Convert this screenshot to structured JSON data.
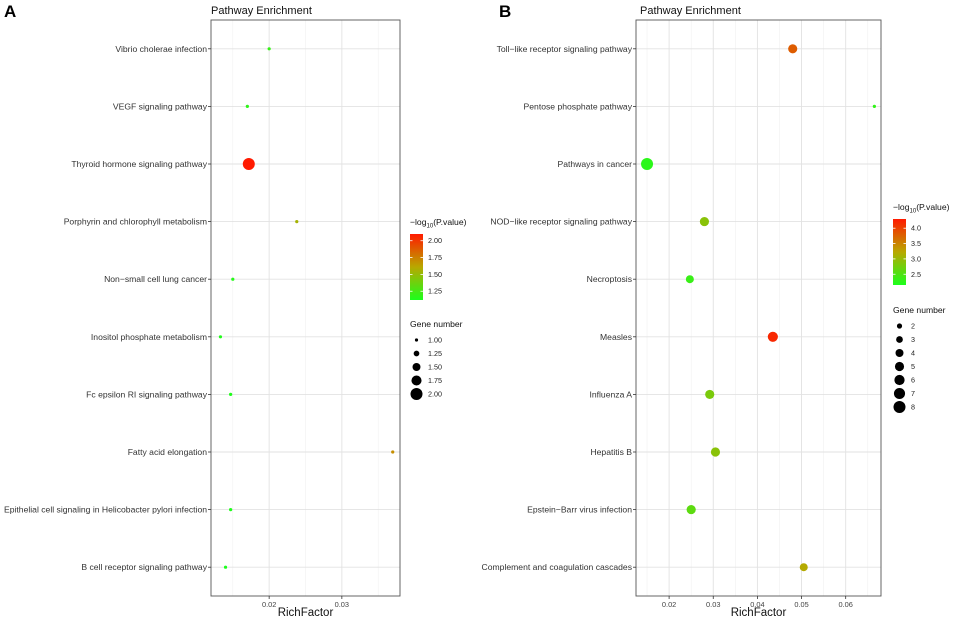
{
  "colors": {
    "low": "#1CFF1C",
    "mid": "#B8A800",
    "high": "#FF1A00",
    "grid": "#E6E6E6",
    "frame": "#555555"
  },
  "chart_data": [
    {
      "type": "scatter",
      "panel": "A",
      "title": "Pathway Enrichment",
      "xlabel": "RichFactor",
      "ylabel": "",
      "xlim": [
        0.012,
        0.038
      ],
      "xticks": [
        0.02,
        0.03
      ],
      "xtick_labels": [
        "0.02",
        "0.03"
      ],
      "categories": [
        "Vibrio cholerae infection",
        "VEGF signaling pathway",
        "Thyroid hormone signaling pathway",
        "Porphyrin and chlorophyll metabolism",
        "Non−small cell lung cancer",
        "Inositol phosphate metabolism",
        "Fc epsilon RI signaling pathway",
        "Fatty acid elongation",
        "Epithelial cell signaling in Helicobacter pylori infection",
        "B cell receptor signaling pathway"
      ],
      "points": [
        {
          "category": "Vibrio cholerae infection",
          "rich_factor": 0.02,
          "gene_number": 1,
          "neg_log10_p": 1.2
        },
        {
          "category": "VEGF signaling pathway",
          "rich_factor": 0.017,
          "gene_number": 1,
          "neg_log10_p": 1.18
        },
        {
          "category": "Thyroid hormone signaling pathway",
          "rich_factor": 0.0172,
          "gene_number": 2,
          "neg_log10_p": 2.1
        },
        {
          "category": "Porphyrin and chlorophyll metabolism",
          "rich_factor": 0.0238,
          "gene_number": 1,
          "neg_log10_p": 1.55
        },
        {
          "category": "Non−small cell lung cancer",
          "rich_factor": 0.015,
          "gene_number": 1,
          "neg_log10_p": 1.15
        },
        {
          "category": "Inositol phosphate metabolism",
          "rich_factor": 0.0133,
          "gene_number": 1,
          "neg_log10_p": 1.14
        },
        {
          "category": "Fc epsilon RI signaling pathway",
          "rich_factor": 0.0147,
          "gene_number": 1,
          "neg_log10_p": 1.13
        },
        {
          "category": "Fatty acid elongation",
          "rich_factor": 0.037,
          "gene_number": 1,
          "neg_log10_p": 1.7
        },
        {
          "category": "Epithelial cell signaling in Helicobacter pylori infection",
          "rich_factor": 0.0147,
          "gene_number": 1,
          "neg_log10_p": 1.13
        },
        {
          "category": "B cell receptor signaling pathway",
          "rich_factor": 0.014,
          "gene_number": 1,
          "neg_log10_p": 1.12
        }
      ],
      "color_legend": {
        "title_prefix": "−log",
        "title_sub": "10",
        "title_suffix": "(P.value)",
        "range": [
          1.12,
          2.1
        ],
        "ticks": [
          1.25,
          1.5,
          1.75,
          2.0
        ],
        "tick_labels": [
          "1.25",
          "1.50",
          "1.75",
          "2.00"
        ]
      },
      "size_legend": {
        "title": "Gene number",
        "values": [
          1,
          1.25,
          1.5,
          1.75,
          2
        ],
        "labels": [
          "1.00",
          "1.25",
          "1.50",
          "1.75",
          "2.00"
        ],
        "range": [
          1,
          2
        ]
      }
    },
    {
      "type": "scatter",
      "panel": "B",
      "title": "Pathway Enrichment",
      "xlabel": "RichFactor",
      "ylabel": "",
      "xlim": [
        0.0125,
        0.068
      ],
      "xticks": [
        0.02,
        0.03,
        0.04,
        0.05,
        0.06
      ],
      "xtick_labels": [
        "0.02",
        "0.03",
        "0.04",
        "0.05",
        "0.06"
      ],
      "categories": [
        "Toll−like receptor signaling pathway",
        "Pentose phosphate pathway",
        "Pathways in cancer",
        "NOD−like receptor signaling pathway",
        "Necroptosis",
        "Measles",
        "Influenza A",
        "Hepatitis B",
        "Epstein−Barr virus infection",
        "Complement and coagulation cascades"
      ],
      "points": [
        {
          "category": "Toll−like receptor signaling pathway",
          "rich_factor": 0.048,
          "gene_number": 5,
          "neg_log10_p": 3.8
        },
        {
          "category": "Pentose phosphate pathway",
          "rich_factor": 0.0665,
          "gene_number": 1,
          "neg_log10_p": 2.3
        },
        {
          "category": "Pathways in cancer",
          "rich_factor": 0.015,
          "gene_number": 8,
          "neg_log10_p": 2.25
        },
        {
          "category": "NOD−like receptor signaling pathway",
          "rich_factor": 0.028,
          "gene_number": 5,
          "neg_log10_p": 2.9
        },
        {
          "category": "Necroptosis",
          "rich_factor": 0.0247,
          "gene_number": 4,
          "neg_log10_p": 2.35
        },
        {
          "category": "Measles",
          "rich_factor": 0.0435,
          "gene_number": 6,
          "neg_log10_p": 4.2
        },
        {
          "category": "Influenza A",
          "rich_factor": 0.0292,
          "gene_number": 5,
          "neg_log10_p": 2.8
        },
        {
          "category": "Hepatitis B",
          "rich_factor": 0.0305,
          "gene_number": 5,
          "neg_log10_p": 2.9
        },
        {
          "category": "Epstein−Barr virus infection",
          "rich_factor": 0.025,
          "gene_number": 5,
          "neg_log10_p": 2.6
        },
        {
          "category": "Complement and coagulation cascades",
          "rich_factor": 0.0505,
          "gene_number": 4,
          "neg_log10_p": 3.2
        }
      ],
      "color_legend": {
        "title_prefix": "−log",
        "title_sub": "10",
        "title_suffix": "(P.value)",
        "range": [
          2.15,
          4.3
        ],
        "ticks": [
          2.5,
          3.0,
          3.5,
          4.0
        ],
        "tick_labels": [
          "2.5",
          "3.0",
          "3.5",
          "4.0"
        ]
      },
      "size_legend": {
        "title": "Gene number",
        "values": [
          2,
          3,
          4,
          5,
          6,
          7,
          8
        ],
        "labels": [
          "2",
          "3",
          "4",
          "5",
          "6",
          "7",
          "8"
        ],
        "range": [
          1,
          8
        ]
      }
    }
  ]
}
